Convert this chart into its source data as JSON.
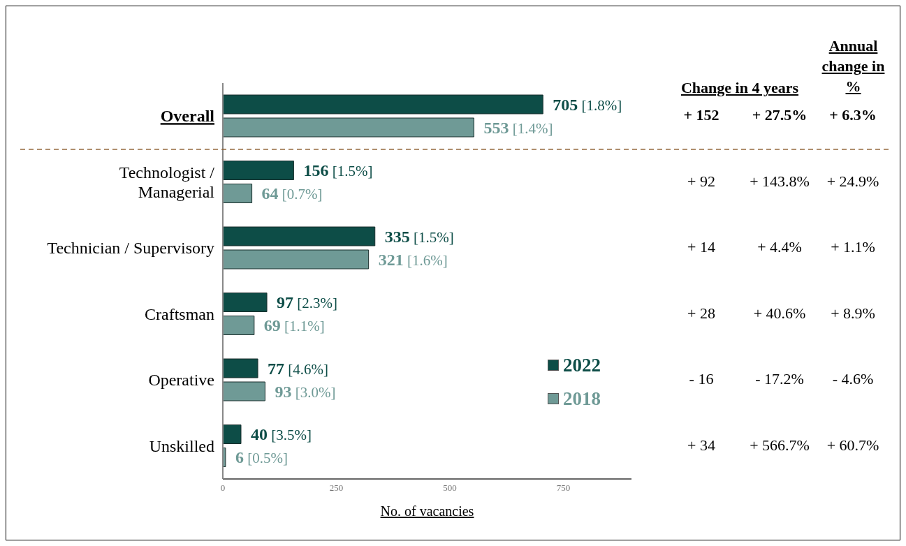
{
  "chart_data": {
    "type": "bar",
    "orientation": "horizontal",
    "categories": [
      "Overall",
      "Technologist / Managerial",
      "Technician / Supervisory",
      "Craftsman",
      "Operative",
      "Unskilled"
    ],
    "series": [
      {
        "name": "2022",
        "color": "#0d4d47",
        "values": [
          705,
          156,
          335,
          97,
          77,
          40
        ],
        "value_labels": [
          "705 [1.8%]",
          "156 [1.5%]",
          "335 [1.5%]",
          "97 [2.3%]",
          "77 [4.6%]",
          "40 [3.5%]"
        ]
      },
      {
        "name": "2018",
        "color": "#6f9a96",
        "values": [
          553,
          64,
          321,
          69,
          93,
          6
        ],
        "value_labels": [
          "553 [1.4%]",
          "64 [0.7%]",
          "321 [1.6%]",
          "69 [1.1%]",
          "93 [3.0%]",
          "6 [0.5%]"
        ]
      }
    ],
    "xlim": [
      0,
      900
    ],
    "xticks": [
      0,
      250,
      500,
      750
    ],
    "xlabel": "No. of vacancies",
    "legend": "right",
    "grid": false,
    "annotations": [
      "Change in 4 years",
      "Annual change in %",
      "+ 152",
      "+ 27.5%",
      "+ 6.3%",
      "+ 92",
      "+ 143.8%",
      "+ 24.9%",
      "+ 14",
      "+ 4.4%",
      "+ 1.1%",
      "+ 28",
      "+ 40.6%",
      "+ 8.9%",
      "- 16",
      "- 17.2%",
      "- 4.6%",
      "+ 34",
      "+ 566.7%",
      "+ 60.7%"
    ]
  }
}
